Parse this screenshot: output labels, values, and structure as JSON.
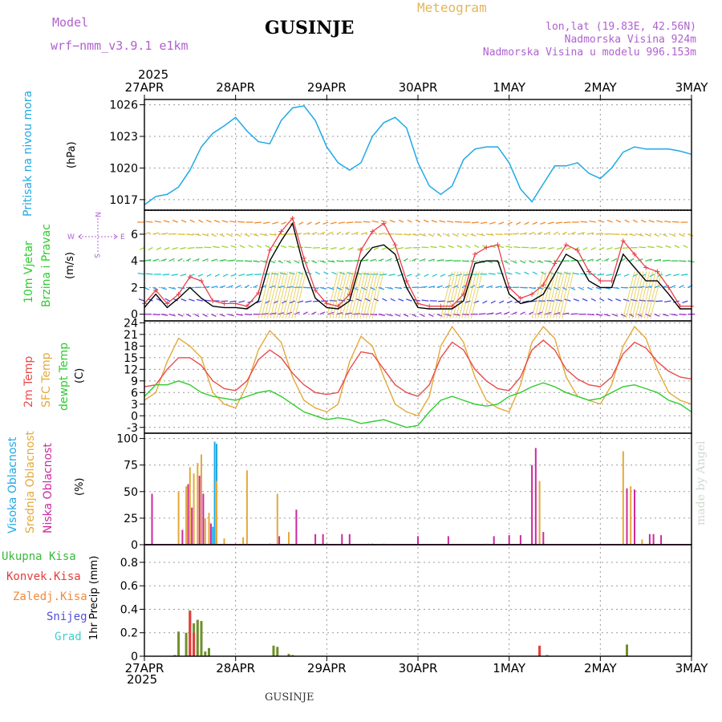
{
  "header": {
    "model_label": "Model",
    "model_name": "wrf−nmm_v3.9.1  e1km",
    "station": "GUSINJE",
    "meteogram": "Meteogram",
    "lonlat": "lon,lat (19.83E, 42.56N)",
    "elevation": "Nadmorska Visina 924m",
    "model_elevation": "Nadmorska Visina u modelu 996.153m",
    "footer_station": "GUSINJE",
    "credit": "made by Angel"
  },
  "colors": {
    "pressure": "#1fa9e6",
    "wind_speed": "#000000",
    "gust": "#e8414b",
    "temp2m": "#e84c4c",
    "sfc": "#e3a93a",
    "dew": "#2ecc2e",
    "high_cloud": "#1fa9e6",
    "mid_cloud": "#e3a93a",
    "low_cloud": "#cc2a9e",
    "total_precip": "#3cb83c",
    "convective": "#e53b3b",
    "frozen": "#f08a3a",
    "snow": "#5050dd",
    "hail": "#3fcfcf",
    "compass": "#b060d0",
    "wind_label": "#2ecc2e"
  },
  "time_axis": {
    "year": "2025",
    "labels": [
      "27APR",
      "28APR",
      "29APR",
      "30APR",
      "1MAY",
      "2MAY",
      "3MAY"
    ],
    "start": "2025-04-27T00",
    "end": "2025-05-03T00"
  },
  "chart_data": [
    {
      "type": "line",
      "panel": "pressure",
      "ylabel": "Pritisak na nivou mora",
      "unit": "(hPa)",
      "ylim": [
        1016,
        1026.5
      ],
      "yticks": [
        1017,
        1020,
        1023,
        1026
      ],
      "grid": true,
      "x": [
        0,
        3,
        6,
        9,
        12,
        15,
        18,
        21,
        24,
        27,
        30,
        33,
        36,
        39,
        42,
        45,
        48,
        51,
        54,
        57,
        60,
        63,
        66,
        69,
        72,
        75,
        78,
        81,
        84,
        87,
        90,
        93,
        96,
        99,
        102,
        105,
        108,
        111,
        114,
        117,
        120,
        123,
        126,
        129,
        132,
        135,
        138,
        141,
        144
      ],
      "values": [
        1016.5,
        1017.3,
        1017.5,
        1018.2,
        1019.8,
        1022.0,
        1023.3,
        1024.0,
        1024.8,
        1023.5,
        1022.5,
        1022.3,
        1024.5,
        1025.7,
        1025.9,
        1024.5,
        1022.0,
        1020.5,
        1019.8,
        1020.5,
        1023.0,
        1024.3,
        1024.8,
        1023.8,
        1020.5,
        1018.3,
        1017.5,
        1018.3,
        1020.8,
        1021.8,
        1022.0,
        1022.0,
        1020.5,
        1018.0,
        1016.8,
        1018.5,
        1020.2,
        1020.2,
        1020.5,
        1019.5,
        1019.0,
        1020.0,
        1021.5,
        1022.0,
        1021.8,
        1021.8,
        1021.8,
        1021.6,
        1021.3
      ]
    },
    {
      "type": "line",
      "panel": "wind",
      "ylabel_line1": "10m Vjetar",
      "ylabel_line2": "Brzina i Pravac",
      "unit": "(m/s)",
      "compass": {
        "n": "N",
        "s": "S",
        "w": "W",
        "e": "E"
      },
      "ylim": [
        -0.5,
        7.8
      ],
      "yticks": [
        0,
        2,
        4,
        6
      ],
      "grid": true,
      "x": [
        0,
        3,
        6,
        9,
        12,
        15,
        18,
        21,
        24,
        27,
        30,
        33,
        36,
        39,
        42,
        45,
        48,
        51,
        54,
        57,
        60,
        63,
        66,
        69,
        72,
        75,
        78,
        81,
        84,
        87,
        90,
        93,
        96,
        99,
        102,
        105,
        108,
        111,
        114,
        117,
        120,
        123,
        126,
        129,
        132,
        135,
        138,
        141,
        144
      ],
      "series": [
        {
          "name": "speed",
          "values": [
            0.5,
            1.5,
            0.5,
            1.2,
            2.0,
            1.2,
            0.6,
            0.5,
            0.5,
            0.4,
            1.0,
            4.0,
            5.5,
            6.8,
            3.5,
            1.2,
            0.5,
            0.4,
            1.0,
            4.0,
            5.0,
            5.2,
            4.5,
            2.0,
            0.5,
            0.4,
            0.4,
            0.4,
            1.0,
            3.8,
            4.0,
            4.0,
            1.5,
            0.8,
            1.0,
            1.5,
            3.0,
            4.5,
            4.0,
            2.5,
            2.0,
            2.0,
            4.5,
            3.5,
            2.5,
            2.5,
            1.5,
            0.4,
            0.4
          ]
        },
        {
          "name": "gust",
          "values": [
            0.8,
            1.8,
            0.8,
            1.5,
            2.8,
            2.5,
            1.0,
            0.8,
            0.8,
            0.6,
            1.6,
            4.8,
            6.2,
            7.2,
            4.2,
            1.8,
            0.8,
            0.6,
            1.5,
            4.8,
            6.2,
            6.8,
            5.2,
            2.5,
            0.8,
            0.6,
            0.6,
            0.6,
            1.5,
            4.5,
            5.0,
            5.2,
            2.0,
            1.2,
            1.5,
            2.2,
            3.8,
            5.2,
            4.8,
            3.2,
            2.5,
            2.5,
            5.5,
            4.5,
            3.5,
            3.2,
            2.0,
            0.6,
            0.6
          ]
        }
      ]
    },
    {
      "type": "line",
      "panel": "temperature",
      "ylabel_line1": "2m Temp",
      "ylabel_line2": "SFC Temp",
      "ylabel_line3": "dewpt Temp",
      "unit": "(C)",
      "ylim": [
        -4.5,
        24.5
      ],
      "yticks": [
        -3,
        0,
        3,
        6,
        9,
        12,
        15,
        18,
        21,
        24
      ],
      "grid": true,
      "x": [
        0,
        3,
        6,
        9,
        12,
        15,
        18,
        21,
        24,
        27,
        30,
        33,
        36,
        39,
        42,
        45,
        48,
        51,
        54,
        57,
        60,
        63,
        66,
        69,
        72,
        75,
        78,
        81,
        84,
        87,
        90,
        93,
        96,
        99,
        102,
        105,
        108,
        111,
        114,
        117,
        120,
        123,
        126,
        129,
        132,
        135,
        138,
        141,
        144
      ],
      "series": [
        {
          "name": "2m",
          "values": [
            7.5,
            8.0,
            12.0,
            15.0,
            15.0,
            13.0,
            9.0,
            7.0,
            6.5,
            9.0,
            14.5,
            17.0,
            15.0,
            11.0,
            8.0,
            6.0,
            5.5,
            6.0,
            12.0,
            16.5,
            16.0,
            12.0,
            8.0,
            6.0,
            5.0,
            8.0,
            15.0,
            19.0,
            17.0,
            12.0,
            9.0,
            7.0,
            6.5,
            10.0,
            17.0,
            19.5,
            17.0,
            12.0,
            9.5,
            8.0,
            7.5,
            10.0,
            16.0,
            19.0,
            17.5,
            14.0,
            11.5,
            10.0,
            9.5
          ]
        },
        {
          "name": "sfc",
          "values": [
            4.0,
            6.0,
            14.0,
            20.0,
            18.0,
            15.0,
            6.0,
            3.0,
            2.0,
            8.0,
            17.0,
            22.0,
            19.0,
            10.0,
            4.0,
            2.0,
            1.0,
            3.0,
            14.0,
            20.5,
            18.0,
            10.0,
            3.0,
            1.0,
            0.0,
            5.0,
            18.0,
            23.0,
            19.0,
            10.0,
            4.0,
            2.0,
            1.0,
            8.0,
            19.0,
            23.0,
            20.0,
            10.0,
            5.0,
            4.0,
            3.0,
            8.0,
            18.0,
            23.0,
            20.0,
            12.0,
            6.0,
            4.0,
            3.0
          ]
        },
        {
          "name": "dew",
          "values": [
            5.0,
            8.0,
            8.0,
            9.0,
            8.0,
            6.0,
            5.0,
            4.5,
            4.0,
            5.0,
            6.0,
            6.5,
            5.0,
            3.0,
            1.0,
            0.0,
            -1.0,
            -0.5,
            -1.0,
            -2.0,
            -1.5,
            -1.0,
            -2.0,
            -3.0,
            -2.5,
            1.0,
            4.0,
            5.0,
            4.0,
            3.0,
            2.5,
            3.0,
            5.0,
            6.0,
            7.5,
            8.5,
            7.5,
            6.0,
            5.0,
            4.0,
            4.5,
            6.0,
            7.5,
            8.0,
            7.0,
            6.0,
            4.0,
            3.0,
            1.0
          ]
        }
      ]
    },
    {
      "type": "bar",
      "panel": "clouds",
      "ylabel_line1": "Visoka Oblacnost",
      "ylabel_line2": "Srednja Oblacnost",
      "ylabel_line3": "Niska Oblacnost",
      "unit": "(%)",
      "ylim": [
        0,
        105
      ],
      "yticks": [
        0,
        25,
        50,
        75,
        100
      ],
      "grid": true,
      "series": [
        {
          "name": "high",
          "bars": [
            [
              18,
              17
            ],
            [
              18.5,
              97
            ],
            [
              19,
              95
            ],
            [
              33,
              1
            ],
            [
              60,
              1
            ]
          ]
        },
        {
          "name": "mid",
          "bars": [
            [
              9,
              50
            ],
            [
              11,
              55
            ],
            [
              12,
              73
            ],
            [
              13,
              67
            ],
            [
              14,
              77
            ],
            [
              15,
              85
            ],
            [
              16,
              25
            ],
            [
              17,
              30
            ],
            [
              19,
              60
            ],
            [
              21,
              6
            ],
            [
              26,
              7
            ],
            [
              27,
              70
            ],
            [
              35,
              48
            ],
            [
              38,
              12
            ],
            [
              59,
              1
            ],
            [
              63,
              1
            ],
            [
              90,
              1
            ],
            [
              104,
              60
            ],
            [
              126,
              88
            ],
            [
              128,
              55
            ],
            [
              131,
              5
            ]
          ]
        },
        {
          "name": "low",
          "bars": [
            [
              2,
              48
            ],
            [
              10,
              14
            ],
            [
              11.5,
              57
            ],
            [
              12.5,
              35
            ],
            [
              14.5,
              65
            ],
            [
              15.5,
              48
            ],
            [
              17.5,
              20
            ],
            [
              35.5,
              8
            ],
            [
              40,
              33
            ],
            [
              45,
              10
            ],
            [
              47,
              10
            ],
            [
              52,
              10
            ],
            [
              54,
              10
            ],
            [
              72,
              8
            ],
            [
              80,
              8
            ],
            [
              92,
              8
            ],
            [
              96,
              9
            ],
            [
              99,
              9
            ],
            [
              102,
              75
            ],
            [
              103,
              91
            ],
            [
              105,
              12
            ],
            [
              127,
              53
            ],
            [
              129,
              52
            ],
            [
              133,
              10
            ],
            [
              134,
              10
            ],
            [
              136,
              9
            ]
          ]
        }
      ]
    },
    {
      "type": "bar",
      "panel": "precipitation",
      "legend": [
        "Ukupna Kisa",
        "Konvek.Kisa",
        "Zaledj.Kisa",
        "Snijeg",
        "Grad"
      ],
      "ylabel": "1hr Precip (mm)",
      "ylim": [
        0,
        0.95
      ],
      "yticks": [
        0,
        0.2,
        0.4,
        0.6,
        0.8
      ],
      "grid": true,
      "series": [
        {
          "name": "total",
          "bars": [
            [
              8,
              0.01
            ],
            [
              9,
              0.21
            ],
            [
              11,
              0.2
            ],
            [
              12,
              0.39
            ],
            [
              13,
              0.28
            ],
            [
              14,
              0.31
            ],
            [
              15,
              0.3
            ],
            [
              16,
              0.04
            ],
            [
              17,
              0.07
            ],
            [
              34,
              0.09
            ],
            [
              35,
              0.08
            ],
            [
              38,
              0.02
            ],
            [
              39,
              0.01
            ],
            [
              104,
              0.03
            ],
            [
              106,
              0.01
            ],
            [
              127,
              0.1
            ]
          ]
        },
        {
          "name": "convective",
          "bars": [
            [
              12,
              0.38
            ],
            [
              13,
              0.2
            ],
            [
              104,
              0.09
            ]
          ]
        }
      ]
    }
  ]
}
